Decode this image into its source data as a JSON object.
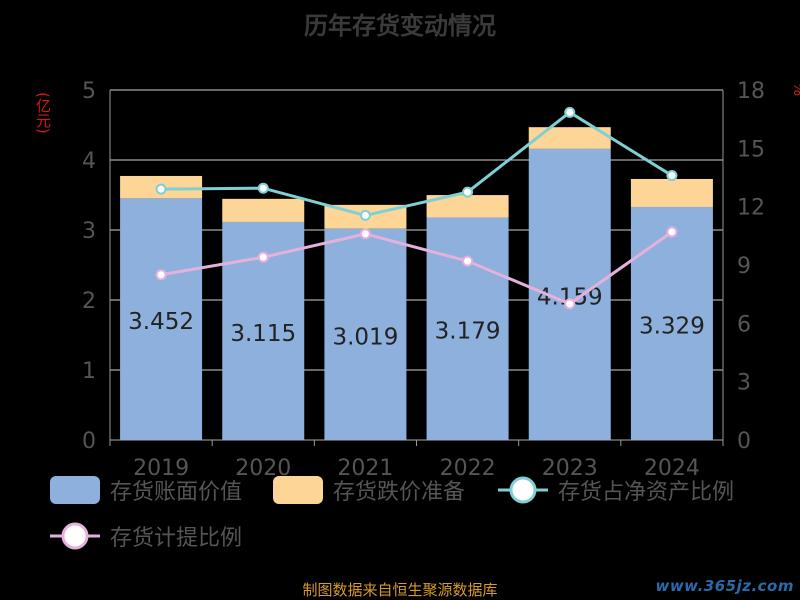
{
  "chart_data": {
    "type": "bar",
    "title": "历年存货变动情况",
    "categories": [
      "2019",
      "2020",
      "2021",
      "2022",
      "2023",
      "2024"
    ],
    "left_axis": {
      "unit": "(亿元)",
      "range": [
        0,
        5
      ],
      "ticks": [
        "0",
        "1",
        "2",
        "3",
        "4",
        "5"
      ]
    },
    "right_axis": {
      "unit": "%",
      "range": [
        0,
        18
      ],
      "ticks": [
        "0",
        "3",
        "6",
        "9",
        "12",
        "15",
        "18"
      ]
    },
    "stacked_bars": [
      {
        "name": "存货账面价值",
        "color": "#8eb0dc",
        "values": [
          3.452,
          3.115,
          3.019,
          3.179,
          4.159,
          3.329
        ],
        "labels": [
          "3.452",
          "3.115",
          "3.019",
          "3.179",
          "4.159",
          "3.329"
        ]
      },
      {
        "name": "存货跌价准备",
        "color": "#fdd596",
        "values": [
          0.32,
          0.33,
          0.34,
          0.32,
          0.31,
          0.4
        ]
      }
    ],
    "lines": [
      {
        "name": "存货占净资产比例",
        "color": "#7fd0d4",
        "axis": "right",
        "values": [
          12.9,
          12.95,
          11.55,
          12.75,
          16.85,
          13.6
        ]
      },
      {
        "name": "存货计提比例",
        "color": "#e5b1dc",
        "axis": "right",
        "values": [
          8.5,
          9.4,
          10.6,
          9.2,
          7.0,
          10.7
        ]
      }
    ],
    "grid": true,
    "legend_position": "bottom"
  },
  "footer": {
    "source": "制图数据来自恒生聚源数据库",
    "watermark": "www.365jz.com"
  }
}
